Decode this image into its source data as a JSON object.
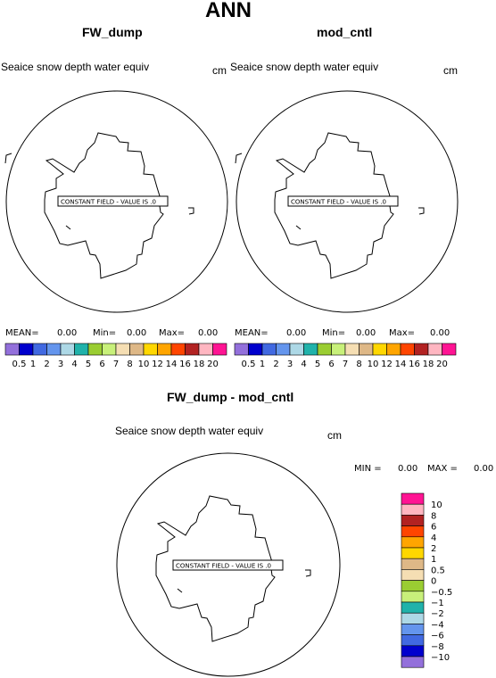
{
  "title": "ANN",
  "panels": [
    {
      "name": "FW_dump",
      "field": "Seaice snow depth water equiv",
      "units": "cm",
      "constant_text": "CONSTANT FIELD - VALUE IS .0",
      "stats": {
        "mean_label": "MEAN=",
        "mean": "0.00",
        "min_label": "Min=",
        "min": "0.00",
        "max_label": "Max=",
        "max": "0.00"
      }
    },
    {
      "name": "mod_cntl",
      "field": "Seaice snow depth water equiv",
      "units": "cm",
      "constant_text": "CONSTANT FIELD - VALUE IS .0",
      "stats": {
        "mean_label": "MEAN=",
        "mean": "0.00",
        "min_label": "Min=",
        "min": "0.00",
        "max_label": "Max=",
        "max": "0.00"
      }
    },
    {
      "name": "FW_dump - mod_cntl",
      "field": "Seaice snow depth water equiv",
      "units": "cm",
      "constant_text": "CONSTANT FIELD - VALUE IS .0",
      "stats": {
        "min_label": "MIN =",
        "min": "0.00",
        "max_label": "MAX =",
        "max": "0.00"
      }
    }
  ],
  "colorbar_top": {
    "labels": [
      "0.5",
      "1",
      "2",
      "3",
      "4",
      "5",
      "6",
      "7",
      "8",
      "10",
      "12",
      "14",
      "16",
      "18",
      "20"
    ],
    "colors": [
      "#9370db",
      "#0000cd",
      "#4169e1",
      "#6495ed",
      "#add8e6",
      "#20b2aa",
      "#9acd32",
      "#c8f07a",
      "#f5deb3",
      "#deb887",
      "#ffd700",
      "#ffa500",
      "#ff4500",
      "#b22222",
      "#ffb6c1",
      "#ff1493"
    ]
  },
  "colorbar_diff": {
    "labels": [
      "10",
      "8",
      "6",
      "4",
      "2",
      "1",
      "0.5",
      "0",
      "−0.5",
      "−1",
      "−2",
      "−4",
      "−6",
      "−8",
      "−10"
    ],
    "colors": [
      "#ff1493",
      "#ffb6c1",
      "#b22222",
      "#ff4500",
      "#ffa500",
      "#ffd700",
      "#deb887",
      "#f5deb3",
      "#9acd32",
      "#c8f07a",
      "#20b2aa",
      "#add8e6",
      "#6495ed",
      "#4169e1",
      "#0000cd",
      "#9370db"
    ]
  }
}
